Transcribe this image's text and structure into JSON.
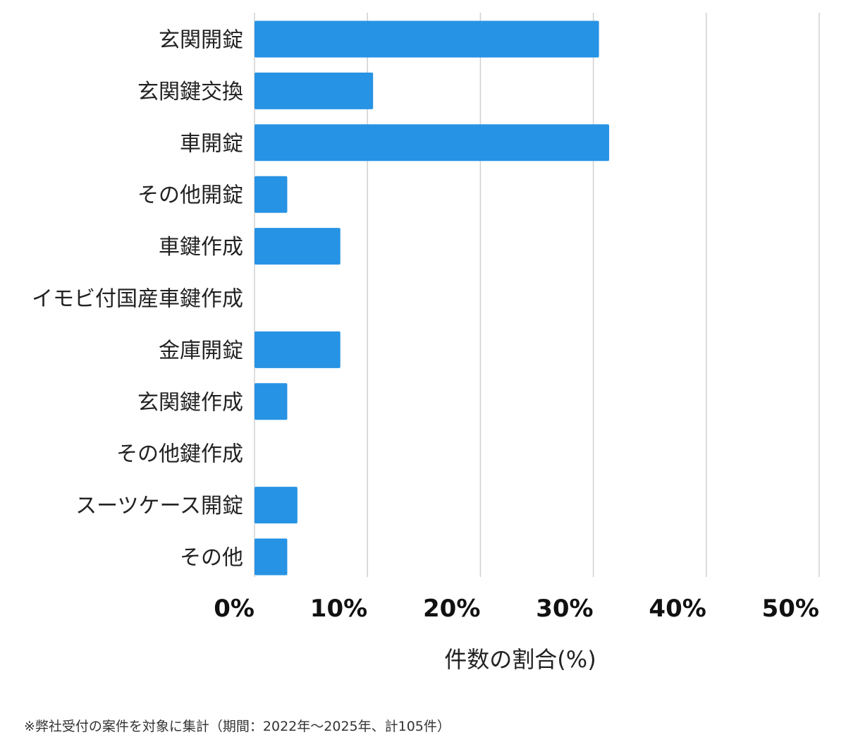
{
  "chart_data": {
    "type": "bar",
    "orientation": "horizontal",
    "categories": [
      "玄関開錠",
      "玄関鍵交換",
      "車開錠",
      "その他開錠",
      "車鍵作成",
      "イモビ付国産車鍵作成",
      "金庫開錠",
      "玄関鍵作成",
      "その他鍵作成",
      "スーツケース開錠",
      "その他"
    ],
    "values": [
      30.5,
      10.5,
      31.4,
      2.9,
      7.6,
      0,
      7.6,
      2.9,
      0,
      3.8,
      2.9
    ],
    "xlabel": "件数の割合(%)",
    "xlim": [
      0,
      50
    ],
    "xticks": [
      0,
      10,
      20,
      30,
      40,
      50
    ],
    "tick_labels": [
      "0%",
      "10%",
      "20%",
      "30%",
      "40%",
      "50%"
    ],
    "grid": "vertical",
    "bar_color": "#2793e4"
  },
  "footnote": "※弊社受付の案件を対象に集計（期間：2022年〜2025年、計105件）"
}
